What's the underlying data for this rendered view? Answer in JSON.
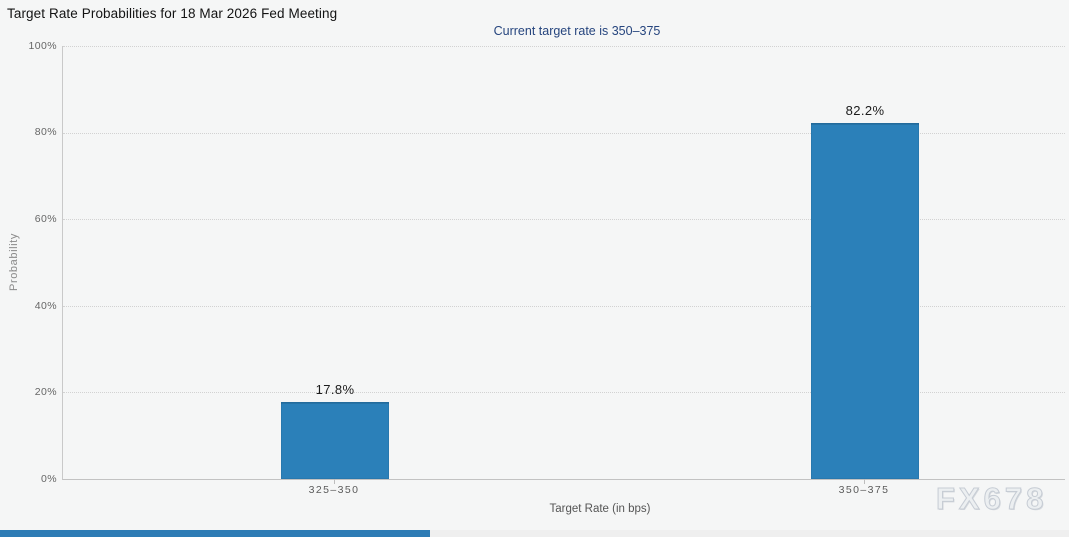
{
  "page": {
    "title": "Target Rate Probabilities for 18 Mar 2026 Fed Meeting",
    "subtitle": "Current target rate is 350–375",
    "watermark": "FX678"
  },
  "chart_data": {
    "type": "bar",
    "title": "Target Rate Probabilities for 18 Mar 2026 Fed Meeting",
    "subtitle": "Current target rate is 350–375",
    "categories": [
      "325–350",
      "350–375"
    ],
    "values": [
      17.8,
      82.2
    ],
    "value_labels": [
      "17.8%",
      "82.2%"
    ],
    "xlabel": "Target Rate (in bps)",
    "ylabel": "Probability",
    "ylim": [
      0,
      100
    ],
    "yticks": [
      "0%",
      "20%",
      "40%",
      "60%",
      "80%",
      "100%"
    ],
    "grid": "horizontal-dotted",
    "legend": "none",
    "bar_color": "#2b80b9",
    "footer_bar_color": "#2e7cb5"
  }
}
